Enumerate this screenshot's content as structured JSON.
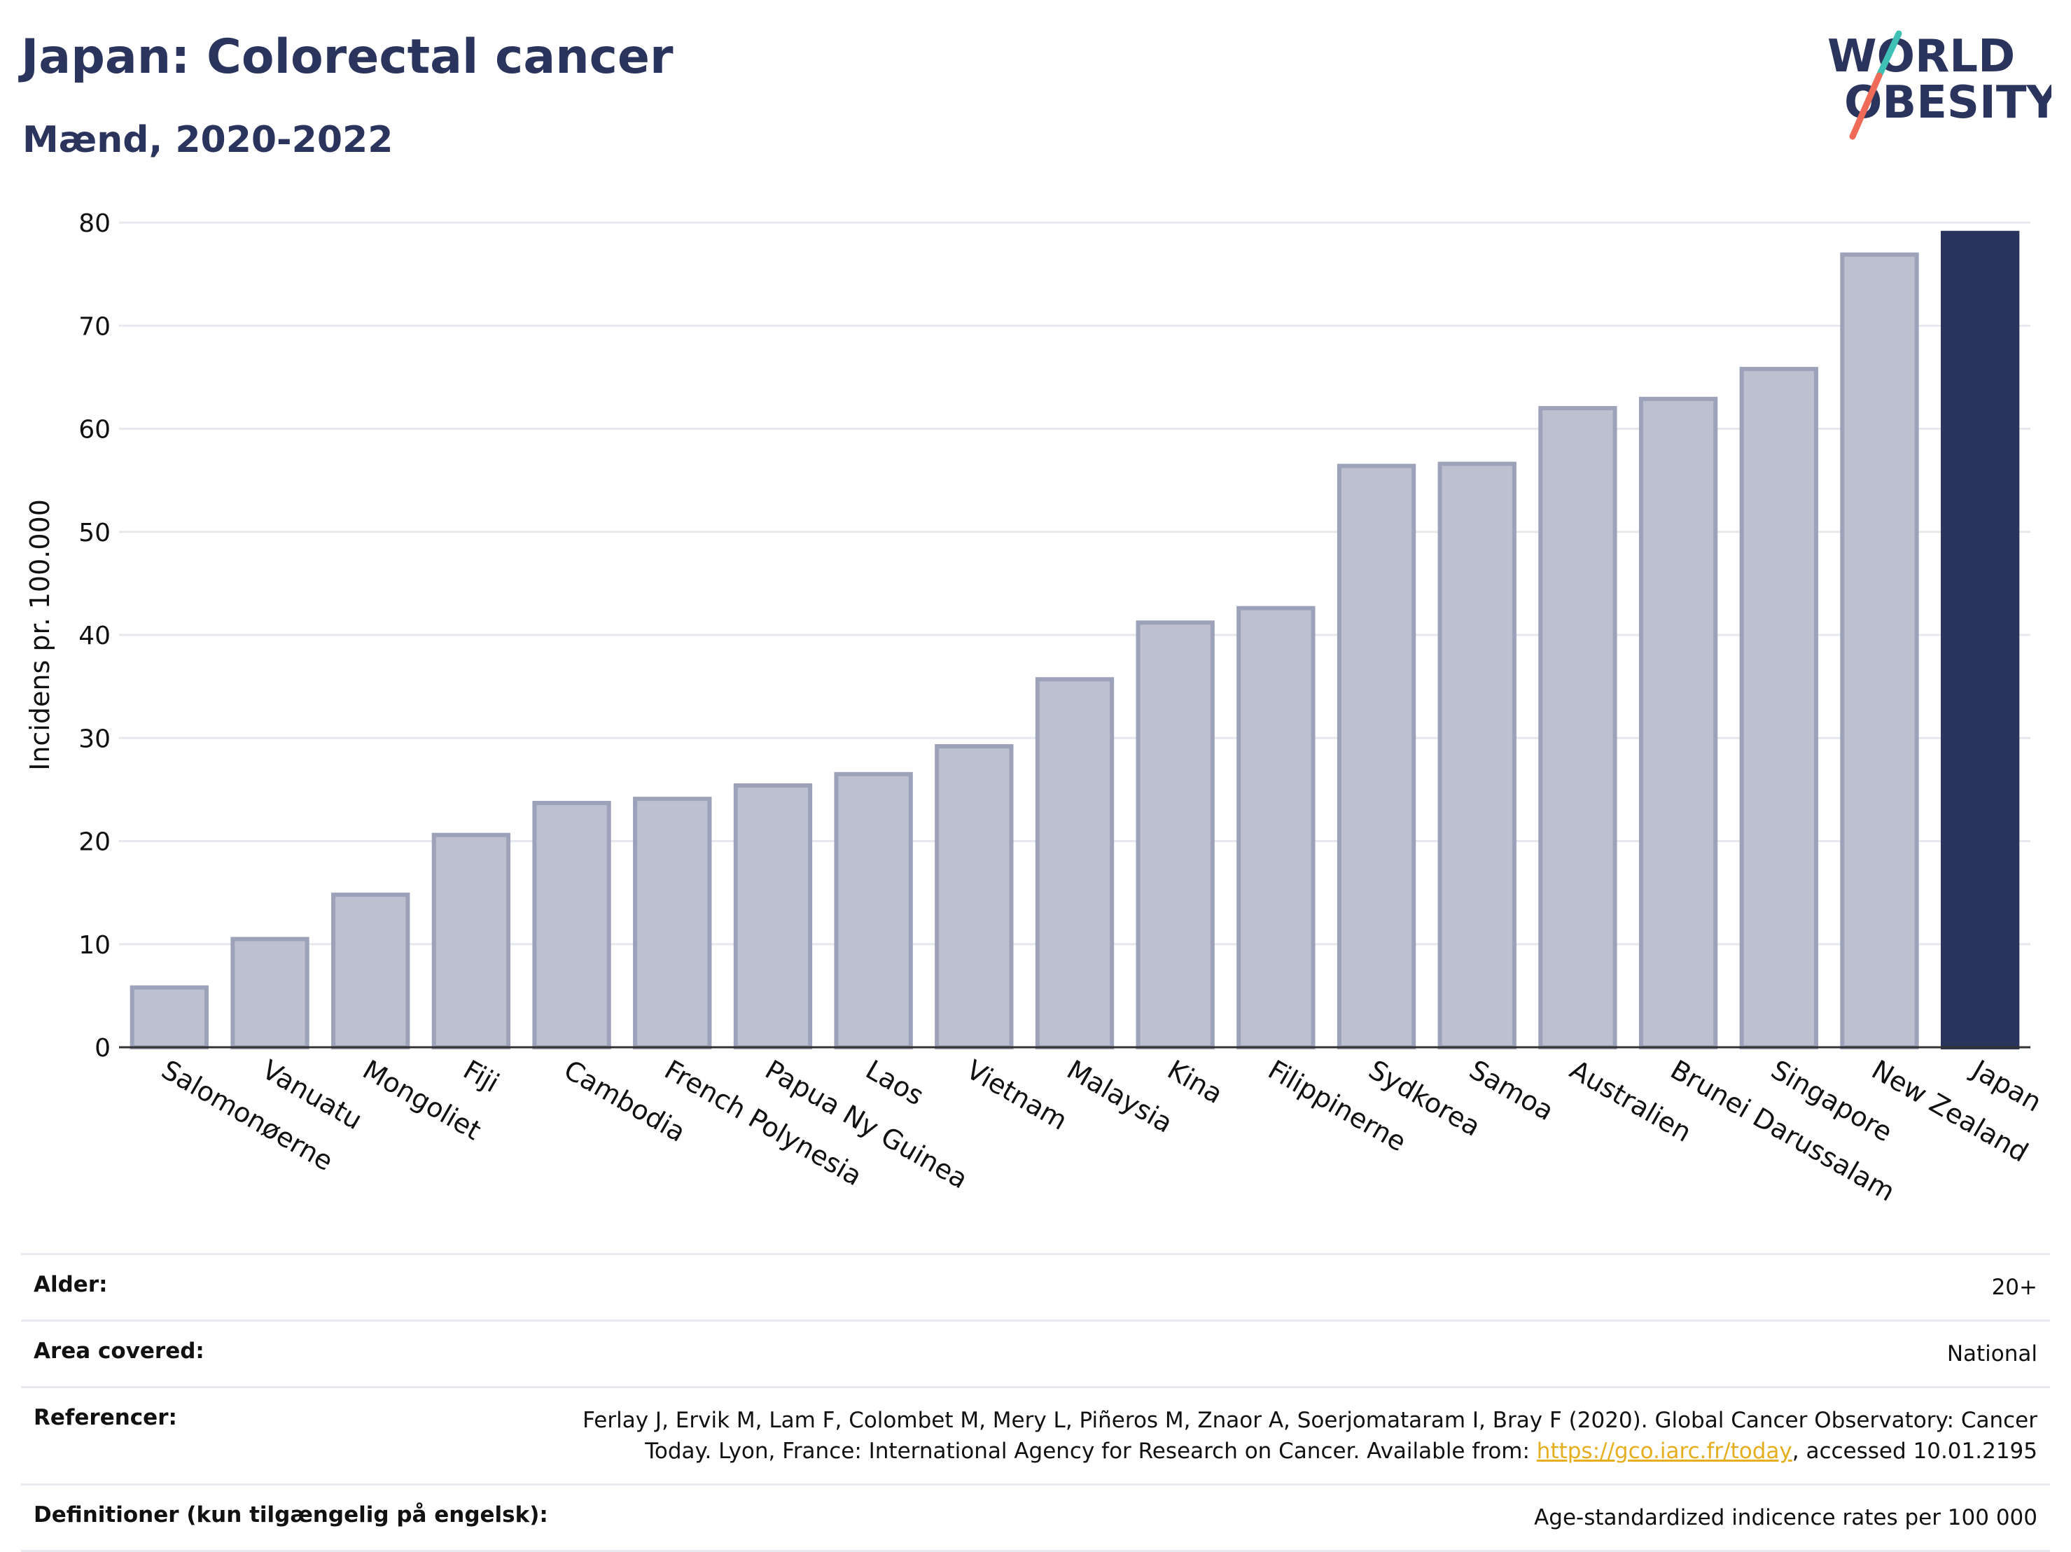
{
  "header": {
    "title": "Japan: Colorectal cancer",
    "subtitle": "Mænd, 2020-2022"
  },
  "logo": {
    "line1": "WORLD",
    "line2": "OBESITY"
  },
  "colors": {
    "bar": "#bcc0cf",
    "bar_border": "#9ca2b9",
    "highlight": "#2a345c",
    "grid": "#e6e8ee",
    "logo_teal": "#3fc0b5",
    "logo_coral": "#ef6b57"
  },
  "chart_data": {
    "type": "bar",
    "ylabel": "Incidens pr. 100.000",
    "ylim": [
      0,
      80
    ],
    "yticks": [
      0,
      10,
      20,
      30,
      40,
      50,
      60,
      70,
      80
    ],
    "grid": true,
    "highlight": "Japan",
    "categories": [
      "Salomonøerne",
      "Vanuatu",
      "Mongoliet",
      "Fiji",
      "Cambodia",
      "French Polynesia",
      "Papua Ny Guinea",
      "Laos",
      "Vietnam",
      "Malaysia",
      "Kina",
      "Filippinerne",
      "Sydkorea",
      "Samoa",
      "Australien",
      "Brunei Darussalam",
      "Singapore",
      "New Zealand",
      "Japan"
    ],
    "values": [
      5.8,
      10.5,
      14.8,
      20.6,
      23.7,
      24.1,
      25.4,
      26.5,
      29.2,
      35.7,
      41.2,
      42.6,
      56.4,
      56.6,
      62.0,
      62.9,
      65.8,
      76.9,
      79.0
    ]
  },
  "meta": [
    {
      "key": "Alder:",
      "value": "20+"
    },
    {
      "key": "Area covered:",
      "value": "National"
    },
    {
      "key": "Referencer:",
      "value_pre": "Ferlay J, Ervik M, Lam F, Colombet M, Mery L, Piñeros M, Znaor A, Soerjomataram I, Bray F (2020). Global Cancer Observatory: Cancer Today. Lyon, France: International Agency for Research on Cancer. Available from: ",
      "link": "https://gco.iarc.fr/today",
      "value_post": ", accessed 10.01.2195"
    },
    {
      "key": "Definitioner (kun tilgængelig på engelsk):",
      "value": "Age-standardized indicence rates per 100 000"
    }
  ]
}
